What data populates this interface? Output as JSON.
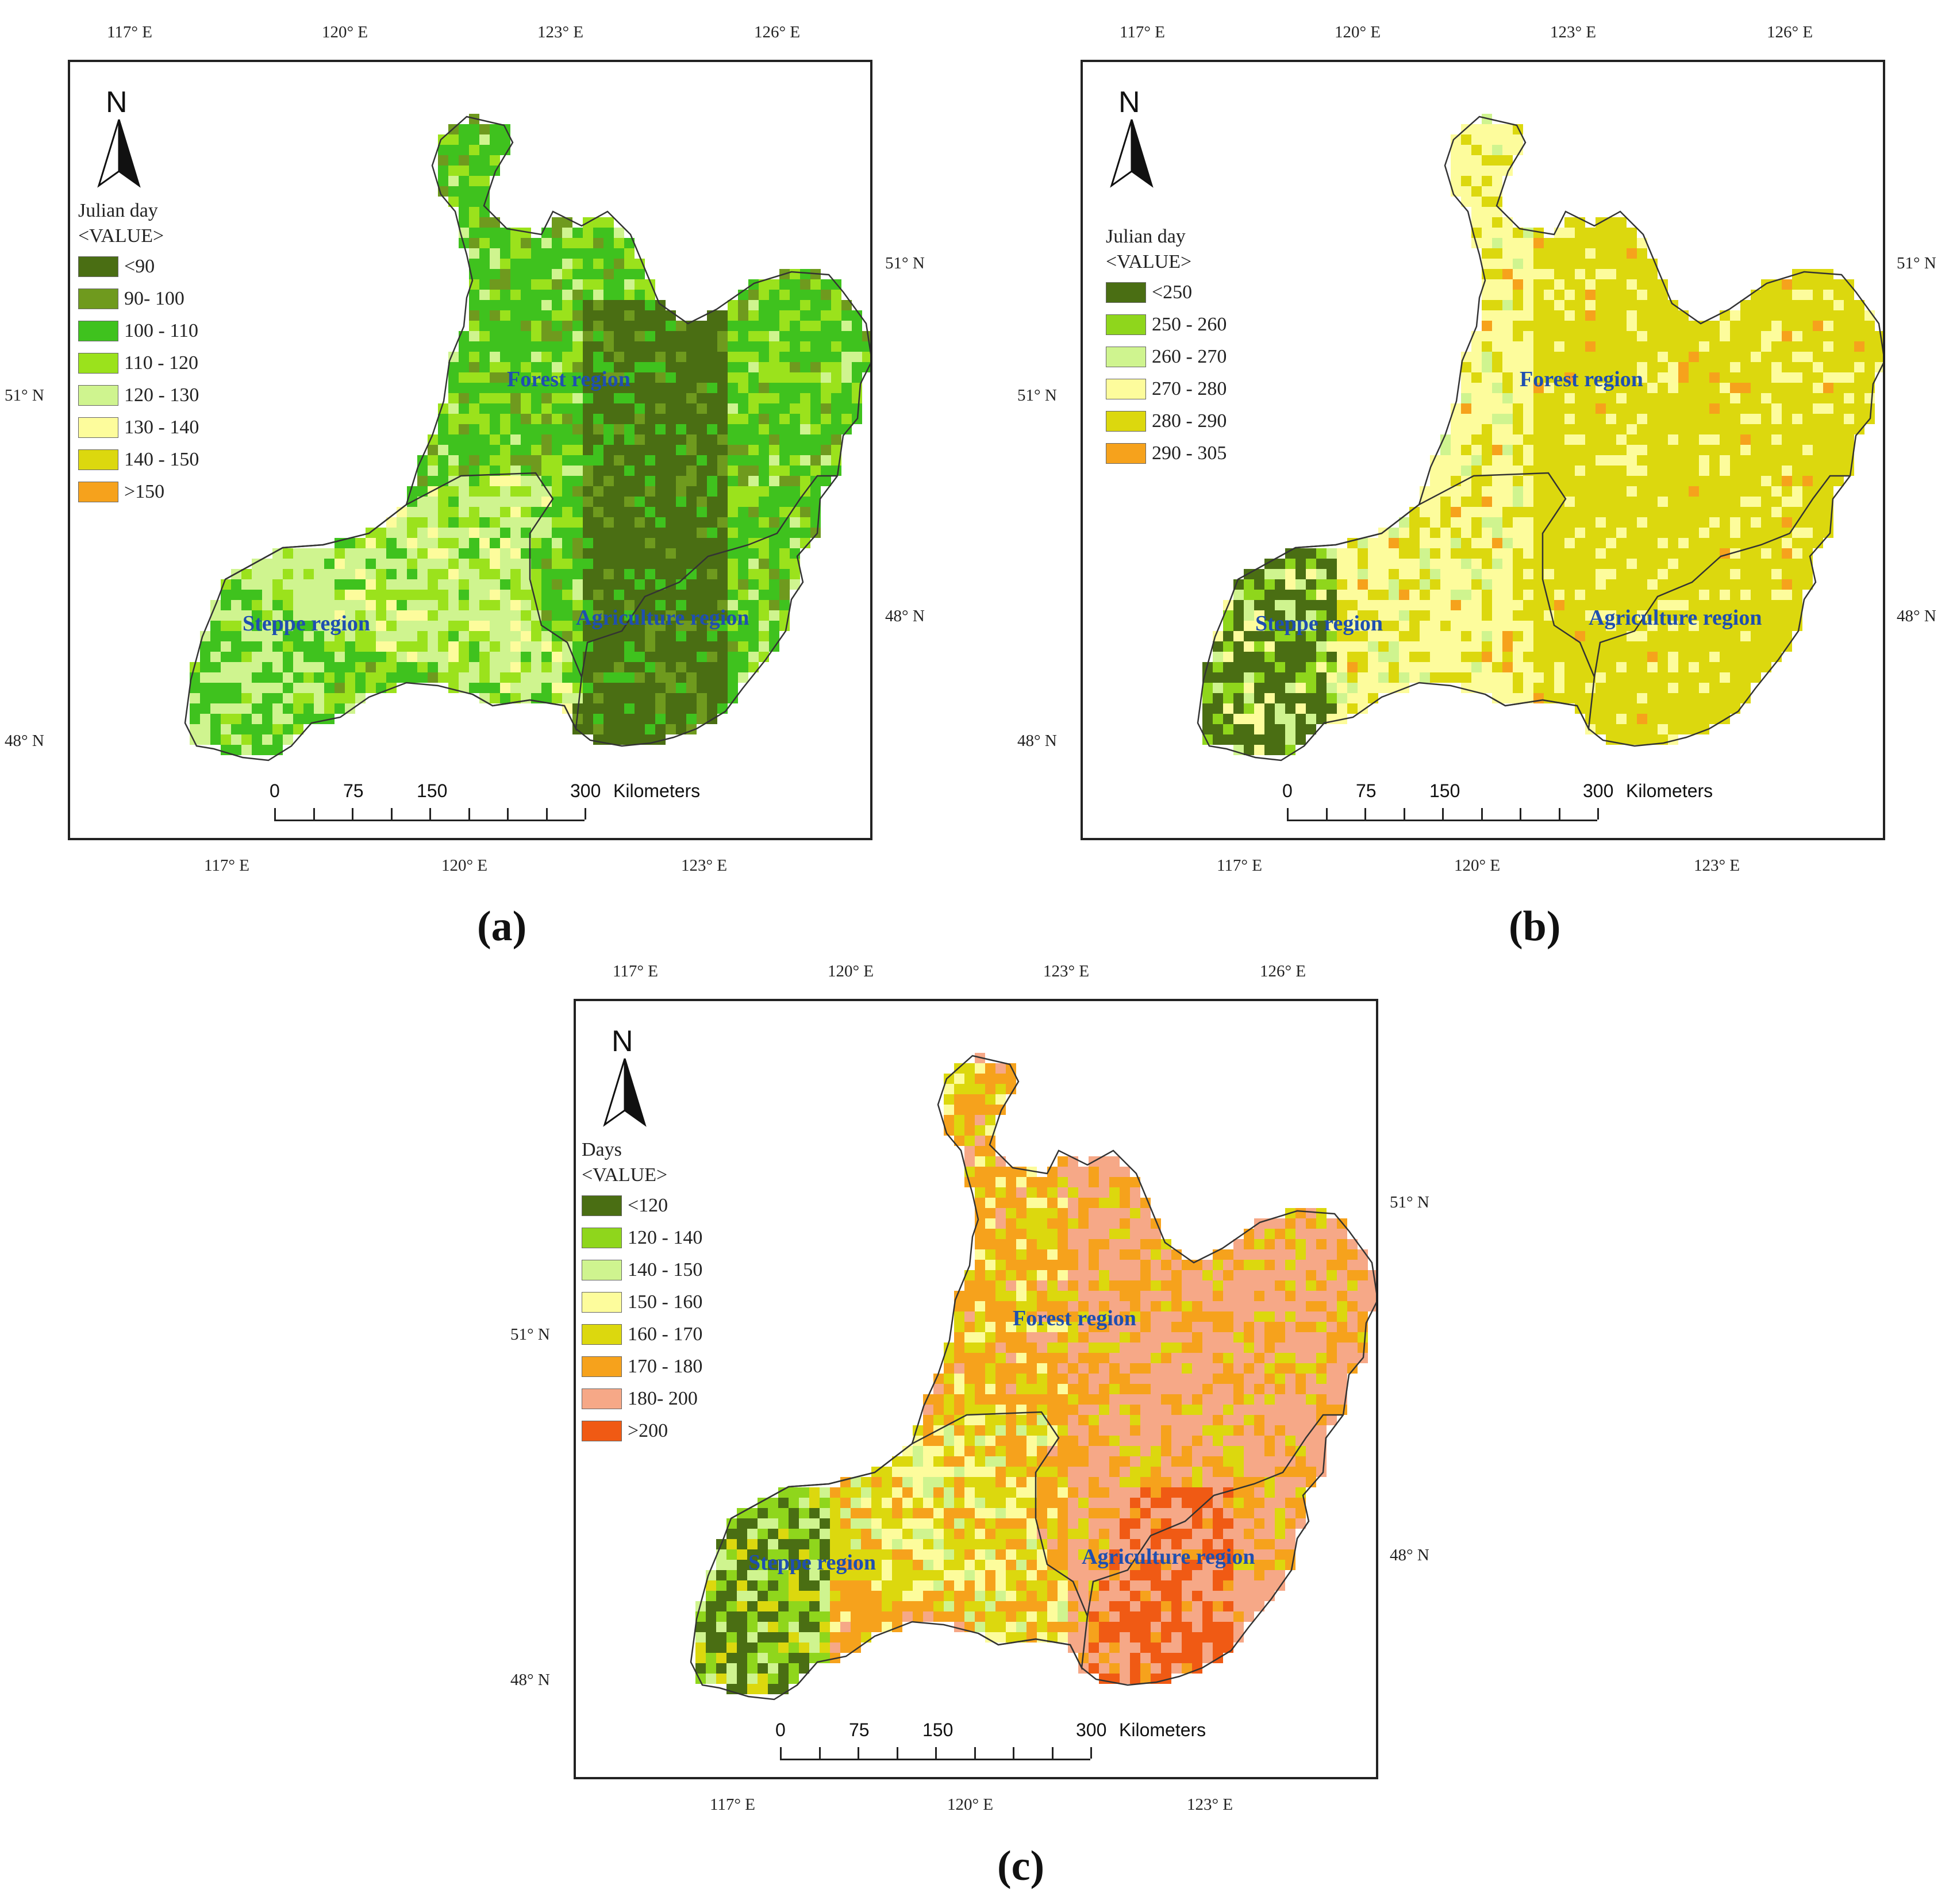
{
  "panels": [
    {
      "id": "a",
      "caption": "(a)",
      "top_ticks": [
        "117° E",
        "120° E",
        "123° E",
        "126° E"
      ],
      "bottom_ticks": [
        "117° E",
        "120° E",
        "123° E"
      ],
      "left_ticks": [
        "51° N",
        "48° N"
      ],
      "right_ticks": [
        "51° N",
        "48° N"
      ],
      "legend_title": "Julian day",
      "legend_field": "<VALUE>",
      "legend": [
        {
          "label": "<90",
          "color": "#4a6e13"
        },
        {
          "label": "90- 100",
          "color": "#6f9a1e"
        },
        {
          "label": "100 - 110",
          "color": "#3fc21e"
        },
        {
          "label": "110 - 120",
          "color": "#9be21c"
        },
        {
          "label": "120 - 130",
          "color": "#cff48f"
        },
        {
          "label": "130 - 140",
          "color": "#fdfc9c"
        },
        {
          "label": "140 - 150",
          "color": "#dcd80e"
        },
        {
          "label": ">150",
          "color": "#f6a21c"
        }
      ],
      "regions": [
        "Forest region",
        "Steppe region",
        "Agriculture region"
      ],
      "scale": {
        "labels": [
          "0",
          "75",
          "150",
          "300"
        ],
        "unit": "Kilometers"
      }
    },
    {
      "id": "b",
      "caption": "(b)",
      "top_ticks": [
        "117° E",
        "120° E",
        "123° E",
        "126° E"
      ],
      "bottom_ticks": [
        "117° E",
        "120° E",
        "123° E"
      ],
      "left_ticks": [
        "51° N",
        "48° N"
      ],
      "right_ticks": [
        "51° N",
        "48° N"
      ],
      "legend_title": "Julian day",
      "legend_field": "<VALUE>",
      "legend": [
        {
          "label": "<250",
          "color": "#4a6e13"
        },
        {
          "label": "250 - 260",
          "color": "#8fd61c"
        },
        {
          "label": "260 - 270",
          "color": "#cff48f"
        },
        {
          "label": "270 - 280",
          "color": "#fdfc9c"
        },
        {
          "label": "280 - 290",
          "color": "#dcd80e"
        },
        {
          "label": "290 - 305",
          "color": "#f6a21c"
        }
      ],
      "regions": [
        "Forest region",
        "Steppe region",
        "Agriculture region"
      ],
      "scale": {
        "labels": [
          "0",
          "75",
          "150",
          "300"
        ],
        "unit": "Kilometers"
      }
    },
    {
      "id": "c",
      "caption": "(c)",
      "top_ticks": [
        "117° E",
        "120° E",
        "123° E",
        "126° E"
      ],
      "bottom_ticks": [
        "117° E",
        "120° E",
        "123° E"
      ],
      "left_ticks": [
        "51° N",
        "48° N"
      ],
      "right_ticks": [
        "51° N",
        "48° N"
      ],
      "legend_title": "Days",
      "legend_field": "<VALUE>",
      "legend": [
        {
          "label": "<120",
          "color": "#4a6e13"
        },
        {
          "label": "120 - 140",
          "color": "#8fd61c"
        },
        {
          "label": "140 - 150",
          "color": "#cff48f"
        },
        {
          "label": "150 - 160",
          "color": "#fdfc9c"
        },
        {
          "label": "160 - 170",
          "color": "#dcd80e"
        },
        {
          "label": "170 - 180",
          "color": "#f6a21c"
        },
        {
          "label": "180- 200",
          "color": "#f6a887"
        },
        {
          "label": ">200",
          "color": "#f05a14"
        }
      ],
      "regions": [
        "Forest region",
        "Steppe region",
        "Agriculture region"
      ],
      "scale": {
        "labels": [
          "0",
          "75",
          "150",
          "300"
        ],
        "unit": "Kilometers"
      }
    }
  ]
}
